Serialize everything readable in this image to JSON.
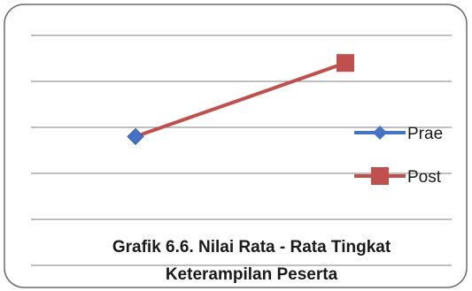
{
  "chart_data": {
    "type": "line",
    "categories": [
      "Prae",
      "Post"
    ],
    "series": [
      {
        "name": "Prae",
        "color": "#4472c4"
      },
      {
        "name": "Post",
        "color": "#c0504d"
      }
    ],
    "values": [
      2.8,
      4.4
    ],
    "ylim": [
      0,
      5
    ],
    "grid": true,
    "legend": "right"
  },
  "caption": {
    "line1": "Grafik 6.6. Nilai Rata - Rata Tingkat",
    "line2": "Keterampilan Peserta"
  }
}
